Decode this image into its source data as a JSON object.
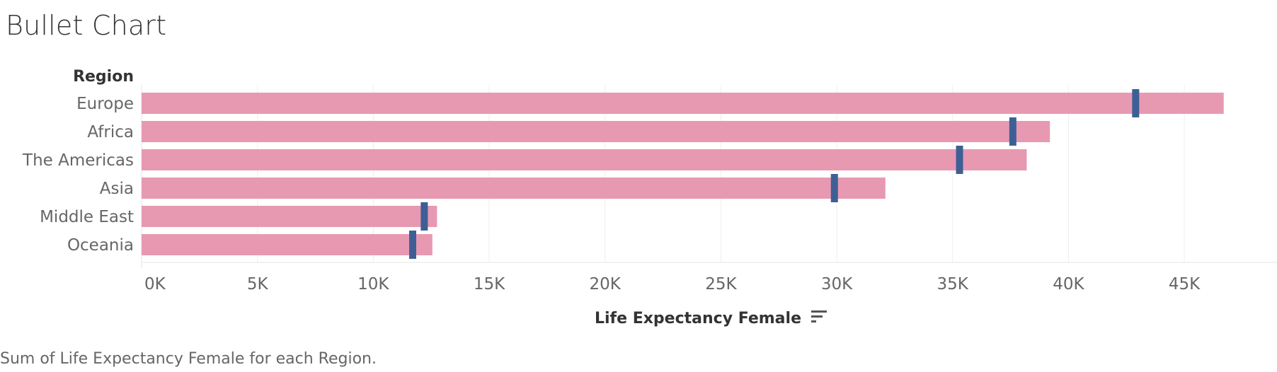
{
  "title": "Bullet Chart",
  "caption": "Sum of Life Expectancy Female for each Region.",
  "colors": {
    "bar": "#e899b2",
    "target": "#3e5f96",
    "grid": "#eeeeee",
    "axis_text": "#666666",
    "header_text": "#333333"
  },
  "sort_icon": "sort-descending-icon",
  "chart_data": {
    "type": "bar",
    "orientation": "horizontal",
    "row_header": "Region",
    "categories": [
      "Europe",
      "Africa",
      "The Americas",
      "Asia",
      "Middle East",
      "Oceania"
    ],
    "series": [
      {
        "role": "measure",
        "values": [
          46700,
          39200,
          38200,
          32100,
          12750,
          12550
        ]
      },
      {
        "role": "target",
        "values": [
          42900,
          37600,
          35300,
          29900,
          12200,
          11700
        ]
      }
    ],
    "xlabel": "Life Expectancy Female",
    "xlim": [
      0,
      49000
    ],
    "xticks": [
      0,
      5000,
      10000,
      15000,
      20000,
      25000,
      30000,
      35000,
      40000,
      45000
    ],
    "xtick_labels": [
      "0K",
      "5K",
      "10K",
      "15K",
      "20K",
      "25K",
      "30K",
      "35K",
      "40K",
      "45K"
    ],
    "grid": true
  }
}
